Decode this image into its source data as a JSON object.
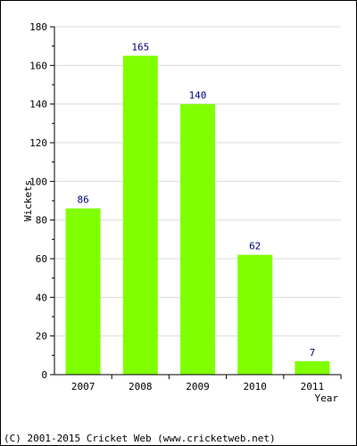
{
  "chart_data": {
    "type": "bar",
    "categories": [
      "2007",
      "2008",
      "2009",
      "2010",
      "2011"
    ],
    "values": [
      86,
      165,
      140,
      62,
      7
    ],
    "data_labels": [
      "86",
      "165",
      "140",
      "62",
      "7"
    ],
    "xlabel": "Year",
    "ylabel": "Wickets",
    "ylim": [
      0,
      180
    ],
    "y_ticks": [
      0,
      20,
      40,
      60,
      80,
      100,
      120,
      140,
      160,
      180
    ],
    "y_tick_labels": [
      "0",
      "20",
      "40",
      "60",
      "80",
      "100",
      "120",
      "140",
      "160",
      "180"
    ],
    "grid": true,
    "bar_color": "#80ff00",
    "label_color": "#000080"
  },
  "footer": {
    "copyright": "(C) 2001-2015 Cricket Web (www.cricketweb.net)"
  }
}
